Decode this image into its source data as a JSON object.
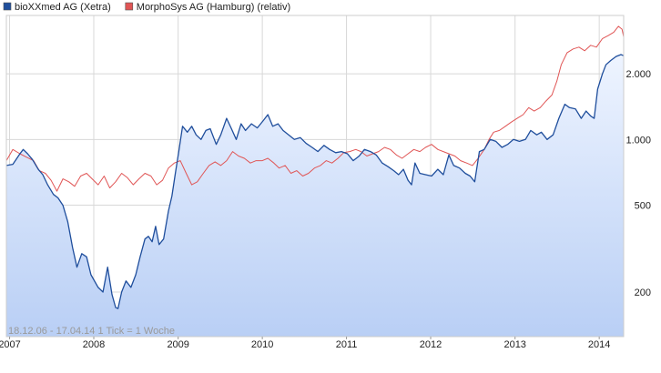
{
  "chart_data": {
    "type": "line",
    "title": "",
    "xlabel": "",
    "ylabel": "",
    "y_scale": "log",
    "grid": true,
    "legend_position": "top-left",
    "xlim": [
      "2006-12-18",
      "2014-04-17"
    ],
    "ylim": [
      125,
      3700
    ],
    "x_ticks": [
      "2007",
      "2008",
      "2009",
      "2010",
      "2011",
      "2012",
      "2013",
      "2014"
    ],
    "y_ticks": [
      {
        "value": 200,
        "label": "200"
      },
      {
        "value": 500,
        "label": "500"
      },
      {
        "value": 1000,
        "label": "1.000"
      },
      {
        "value": 2000,
        "label": "2.000"
      }
    ],
    "footnote": "18.12.06 - 17.04.14   1 Tick = 1 Woche",
    "series": [
      {
        "name": "bioXXmed AG (Xetra)",
        "color": "#1f4e9c",
        "fill": true,
        "points": [
          [
            "2006-12-18",
            760
          ],
          [
            "2007-01-15",
            770
          ],
          [
            "2007-02-15",
            860
          ],
          [
            "2007-03-01",
            900
          ],
          [
            "2007-03-20",
            860
          ],
          [
            "2007-04-10",
            810
          ],
          [
            "2007-05-05",
            730
          ],
          [
            "2007-05-25",
            690
          ],
          [
            "2007-06-15",
            620
          ],
          [
            "2007-07-10",
            560
          ],
          [
            "2007-07-30",
            540
          ],
          [
            "2007-08-20",
            500
          ],
          [
            "2007-09-10",
            420
          ],
          [
            "2007-10-01",
            320
          ],
          [
            "2007-10-20",
            260
          ],
          [
            "2007-11-10",
            300
          ],
          [
            "2007-12-01",
            290
          ],
          [
            "2007-12-20",
            240
          ],
          [
            "2008-01-20",
            210
          ],
          [
            "2008-02-10",
            200
          ],
          [
            "2008-03-01",
            260
          ],
          [
            "2008-03-20",
            195
          ],
          [
            "2008-04-05",
            170
          ],
          [
            "2008-04-15",
            168
          ],
          [
            "2008-05-01",
            200
          ],
          [
            "2008-05-20",
            225
          ],
          [
            "2008-06-10",
            210
          ],
          [
            "2008-07-01",
            240
          ],
          [
            "2008-07-20",
            290
          ],
          [
            "2008-08-10",
            350
          ],
          [
            "2008-08-25",
            360
          ],
          [
            "2008-09-10",
            340
          ],
          [
            "2008-09-25",
            400
          ],
          [
            "2008-10-10",
            330
          ],
          [
            "2008-10-30",
            350
          ],
          [
            "2008-11-20",
            470
          ],
          [
            "2008-12-05",
            550
          ],
          [
            "2008-12-20",
            700
          ],
          [
            "2009-01-05",
            900
          ],
          [
            "2009-01-20",
            1150
          ],
          [
            "2009-02-10",
            1080
          ],
          [
            "2009-03-01",
            1150
          ],
          [
            "2009-03-20",
            1050
          ],
          [
            "2009-04-10",
            1000
          ],
          [
            "2009-05-01",
            1100
          ],
          [
            "2009-05-20",
            1120
          ],
          [
            "2009-06-15",
            950
          ],
          [
            "2009-07-05",
            1050
          ],
          [
            "2009-07-30",
            1250
          ],
          [
            "2009-08-20",
            1120
          ],
          [
            "2009-09-10",
            1000
          ],
          [
            "2009-10-01",
            1180
          ],
          [
            "2009-10-20",
            1100
          ],
          [
            "2009-11-15",
            1180
          ],
          [
            "2009-12-10",
            1130
          ],
          [
            "2010-01-05",
            1220
          ],
          [
            "2010-01-25",
            1300
          ],
          [
            "2010-02-15",
            1150
          ],
          [
            "2010-03-10",
            1180
          ],
          [
            "2010-04-01",
            1100
          ],
          [
            "2010-04-25",
            1050
          ],
          [
            "2010-05-20",
            1000
          ],
          [
            "2010-06-15",
            1020
          ],
          [
            "2010-07-10",
            960
          ],
          [
            "2010-08-05",
            920
          ],
          [
            "2010-08-30",
            880
          ],
          [
            "2010-09-25",
            940
          ],
          [
            "2010-10-20",
            900
          ],
          [
            "2010-11-15",
            870
          ],
          [
            "2010-12-10",
            880
          ],
          [
            "2011-01-05",
            860
          ],
          [
            "2011-01-30",
            800
          ],
          [
            "2011-02-25",
            840
          ],
          [
            "2011-03-20",
            900
          ],
          [
            "2011-04-15",
            880
          ],
          [
            "2011-05-10",
            850
          ],
          [
            "2011-06-05",
            780
          ],
          [
            "2011-07-01",
            750
          ],
          [
            "2011-07-25",
            720
          ],
          [
            "2011-08-15",
            690
          ],
          [
            "2011-09-05",
            730
          ],
          [
            "2011-09-25",
            650
          ],
          [
            "2011-10-10",
            620
          ],
          [
            "2011-10-25",
            780
          ],
          [
            "2011-11-15",
            700
          ],
          [
            "2011-12-10",
            690
          ],
          [
            "2012-01-05",
            680
          ],
          [
            "2012-02-01",
            730
          ],
          [
            "2012-02-25",
            690
          ],
          [
            "2012-03-20",
            850
          ],
          [
            "2012-04-10",
            760
          ],
          [
            "2012-05-05",
            740
          ],
          [
            "2012-05-30",
            700
          ],
          [
            "2012-06-20",
            680
          ],
          [
            "2012-07-10",
            640
          ],
          [
            "2012-07-30",
            880
          ],
          [
            "2012-08-20",
            900
          ],
          [
            "2012-09-15",
            1000
          ],
          [
            "2012-10-10",
            980
          ],
          [
            "2012-11-05",
            920
          ],
          [
            "2012-11-30",
            950
          ],
          [
            "2012-12-25",
            1000
          ],
          [
            "2013-01-20",
            980
          ],
          [
            "2013-02-15",
            1000
          ],
          [
            "2013-03-10",
            1100
          ],
          [
            "2013-04-05",
            1050
          ],
          [
            "2013-04-25",
            1080
          ],
          [
            "2013-05-20",
            1000
          ],
          [
            "2013-06-15",
            1050
          ],
          [
            "2013-07-10",
            1250
          ],
          [
            "2013-08-05",
            1450
          ],
          [
            "2013-08-25",
            1400
          ],
          [
            "2013-09-20",
            1380
          ],
          [
            "2013-10-15",
            1250
          ],
          [
            "2013-11-05",
            1350
          ],
          [
            "2013-11-25",
            1280
          ],
          [
            "2013-12-10",
            1250
          ],
          [
            "2013-12-25",
            1700
          ],
          [
            "2014-01-15",
            2000
          ],
          [
            "2014-01-30",
            2200
          ],
          [
            "2014-02-20",
            2300
          ],
          [
            "2014-03-15",
            2400
          ],
          [
            "2014-04-05",
            2450
          ],
          [
            "2014-04-17",
            2420
          ]
        ]
      },
      {
        "name": "MorphoSys AG (Hamburg) (relativ)",
        "color": "#e05555",
        "fill": false,
        "points": [
          [
            "2006-12-18",
            800
          ],
          [
            "2007-01-15",
            900
          ],
          [
            "2007-02-15",
            860
          ],
          [
            "2007-03-15",
            830
          ],
          [
            "2007-04-15",
            800
          ],
          [
            "2007-05-10",
            720
          ],
          [
            "2007-06-05",
            700
          ],
          [
            "2007-06-30",
            650
          ],
          [
            "2007-07-25",
            580
          ],
          [
            "2007-08-20",
            660
          ],
          [
            "2007-09-15",
            640
          ],
          [
            "2007-10-10",
            610
          ],
          [
            "2007-11-05",
            680
          ],
          [
            "2007-12-01",
            700
          ],
          [
            "2007-12-25",
            660
          ],
          [
            "2008-01-20",
            620
          ],
          [
            "2008-02-15",
            680
          ],
          [
            "2008-03-10",
            600
          ],
          [
            "2008-04-05",
            640
          ],
          [
            "2008-05-01",
            700
          ],
          [
            "2008-05-25",
            670
          ],
          [
            "2008-06-20",
            620
          ],
          [
            "2008-07-15",
            660
          ],
          [
            "2008-08-10",
            700
          ],
          [
            "2008-09-05",
            680
          ],
          [
            "2008-09-30",
            620
          ],
          [
            "2008-10-25",
            650
          ],
          [
            "2008-11-20",
            740
          ],
          [
            "2008-12-15",
            780
          ],
          [
            "2009-01-10",
            800
          ],
          [
            "2009-02-05",
            700
          ],
          [
            "2009-03-01",
            620
          ],
          [
            "2009-03-25",
            640
          ],
          [
            "2009-04-20",
            700
          ],
          [
            "2009-05-15",
            760
          ],
          [
            "2009-06-10",
            790
          ],
          [
            "2009-07-05",
            760
          ],
          [
            "2009-07-30",
            800
          ],
          [
            "2009-08-25",
            880
          ],
          [
            "2009-09-20",
            840
          ],
          [
            "2009-10-15",
            820
          ],
          [
            "2009-11-10",
            780
          ],
          [
            "2009-12-05",
            800
          ],
          [
            "2010-01-01",
            800
          ],
          [
            "2010-01-25",
            820
          ],
          [
            "2010-02-20",
            780
          ],
          [
            "2010-03-15",
            740
          ],
          [
            "2010-04-10",
            760
          ],
          [
            "2010-05-05",
            700
          ],
          [
            "2010-05-30",
            720
          ],
          [
            "2010-06-25",
            680
          ],
          [
            "2010-07-20",
            700
          ],
          [
            "2010-08-15",
            740
          ],
          [
            "2010-09-10",
            760
          ],
          [
            "2010-10-05",
            800
          ],
          [
            "2010-10-30",
            780
          ],
          [
            "2010-11-25",
            820
          ],
          [
            "2010-12-20",
            870
          ],
          [
            "2011-01-15",
            880
          ],
          [
            "2011-02-10",
            900
          ],
          [
            "2011-03-05",
            880
          ],
          [
            "2011-03-30",
            840
          ],
          [
            "2011-04-25",
            860
          ],
          [
            "2011-05-20",
            880
          ],
          [
            "2011-06-15",
            920
          ],
          [
            "2011-07-10",
            900
          ],
          [
            "2011-08-05",
            850
          ],
          [
            "2011-08-30",
            820
          ],
          [
            "2011-09-25",
            860
          ],
          [
            "2011-10-20",
            900
          ],
          [
            "2011-11-15",
            880
          ],
          [
            "2011-12-10",
            920
          ],
          [
            "2012-01-05",
            950
          ],
          [
            "2012-02-01",
            900
          ],
          [
            "2012-02-25",
            880
          ],
          [
            "2012-03-20",
            860
          ],
          [
            "2012-04-15",
            840
          ],
          [
            "2012-05-10",
            800
          ],
          [
            "2012-06-05",
            780
          ],
          [
            "2012-06-30",
            760
          ],
          [
            "2012-07-25",
            820
          ],
          [
            "2012-08-20",
            900
          ],
          [
            "2012-09-10",
            1000
          ],
          [
            "2012-09-30",
            1080
          ],
          [
            "2012-10-25",
            1100
          ],
          [
            "2012-11-20",
            1150
          ],
          [
            "2012-12-15",
            1200
          ],
          [
            "2013-01-10",
            1250
          ],
          [
            "2013-02-05",
            1300
          ],
          [
            "2013-03-01",
            1400
          ],
          [
            "2013-03-25",
            1350
          ],
          [
            "2013-04-20",
            1400
          ],
          [
            "2013-05-15",
            1500
          ],
          [
            "2013-06-10",
            1600
          ],
          [
            "2013-07-01",
            1850
          ],
          [
            "2013-07-20",
            2200
          ],
          [
            "2013-08-15",
            2500
          ],
          [
            "2013-09-10",
            2600
          ],
          [
            "2013-10-05",
            2650
          ],
          [
            "2013-10-30",
            2550
          ],
          [
            "2013-11-25",
            2700
          ],
          [
            "2013-12-20",
            2650
          ],
          [
            "2014-01-15",
            2900
          ],
          [
            "2014-02-10",
            3000
          ],
          [
            "2014-03-05",
            3100
          ],
          [
            "2014-03-25",
            3300
          ],
          [
            "2014-04-10",
            3200
          ],
          [
            "2014-04-17",
            2950
          ]
        ]
      }
    ]
  }
}
